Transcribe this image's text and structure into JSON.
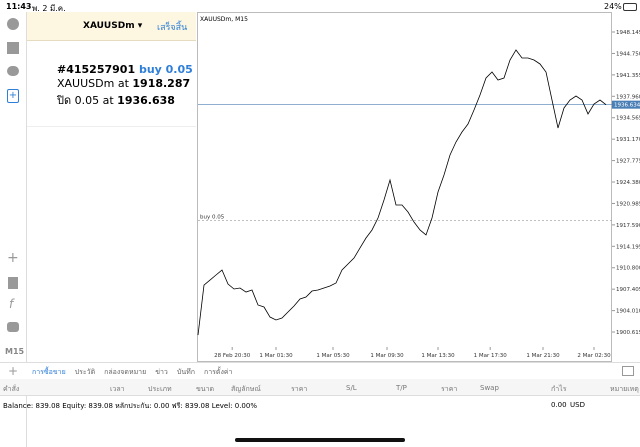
{
  "status_bar": {
    "time": "11:43",
    "date": "พ. 2 มี.ค.",
    "battery": "24%"
  },
  "panel": {
    "symbol": "XAUUSDm ▾",
    "done": "เสร็จสิ้น",
    "order": "#415257901",
    "action": "buy 0.05",
    "open_text": "XAUUSDm at",
    "open_price": "1918.287",
    "close_text": "ปิด 0.05 at",
    "close_price": "1936.638"
  },
  "sidebar": {
    "timeframe": "M15"
  },
  "tabs": [
    "การซื้อขาย",
    "ประวัติ",
    "กล่องจดหมาย",
    "ข่าว",
    "บันทึก",
    "การตั้งค่า"
  ],
  "columns": [
    "คำสั่ง",
    "เวลา",
    "ประเภท",
    "ขนาด",
    "สัญลักษณ์",
    "ราคา",
    "S/L",
    "T/P",
    "ราคา",
    "Swap",
    "กำไร",
    "หมายเหตุ"
  ],
  "balance": {
    "text": "Balance: 839.08 Equity: 839.08 หลักประกัน: 0.00 ฟรี: 839.08 Level: 0.00%",
    "profit": "0.00",
    "currency": "USD"
  },
  "chart_data": {
    "type": "line",
    "title": "XAUUSDm, M15",
    "color": "#000000",
    "values": [
      1900.14,
      1908.06,
      1908.85,
      1909.65,
      1910.44,
      1908.22,
      1907.43,
      1907.59,
      1906.95,
      1907.27,
      1904.9,
      1904.58,
      1902.99,
      1902.52,
      1902.83,
      1903.79,
      1904.74,
      1905.85,
      1906.16,
      1907.11,
      1907.27,
      1907.59,
      1907.91,
      1908.38,
      1910.44,
      1911.39,
      1912.34,
      1913.93,
      1915.51,
      1916.78,
      1918.68,
      1921.53,
      1924.7,
      1920.74,
      1920.74,
      1919.63,
      1918.04,
      1916.78,
      1915.99,
      1918.68,
      1922.8,
      1925.49,
      1928.66,
      1930.72,
      1932.3,
      1933.57,
      1935.79,
      1938.17,
      1940.86,
      1941.81,
      1940.54,
      1940.86,
      1943.71,
      1945.3,
      1944.03,
      1944.03,
      1943.71,
      1943.08,
      1941.81,
      1937.37,
      1932.94,
      1936.11,
      1937.37,
      1938.01,
      1937.37,
      1935.16,
      1936.74,
      1937.37,
      1936.63
    ],
    "xlim": [
      0,
      69
    ],
    "xticks": [
      {
        "value": 5.7,
        "label": "28 Feb 20:30"
      },
      {
        "value": 13,
        "label": "1 Mar 01:30"
      },
      {
        "value": 22.5,
        "label": "1 Mar 05:30"
      },
      {
        "value": 31.5,
        "label": "1 Mar 09:30"
      },
      {
        "value": 40,
        "label": "1 Mar 13:30"
      },
      {
        "value": 48.7,
        "label": "1 Mar 17:30"
      },
      {
        "value": 57.5,
        "label": "1 Mar 21:30"
      },
      {
        "value": 66,
        "label": "2 Mar 02:30"
      }
    ],
    "ylim": [
      1898.56,
      1950.84
    ],
    "yticks": [
      1948.145,
      {
        "value": 1944.75,
        "label": "1944.750"
      },
      1941.355,
      {
        "value": 1937.96,
        "label": "1937.960"
      },
      1934.565,
      {
        "value": 1931.17,
        "label": "1931.170"
      },
      1927.775,
      {
        "value": 1924.38,
        "label": "1924.380"
      },
      1920.985,
      {
        "value": 1917.59,
        "label": "1917.590"
      },
      1914.195,
      {
        "value": 1910.8,
        "label": "1910.800"
      },
      1907.405,
      {
        "value": 1904.01,
        "label": "1904.010"
      },
      1900.615
    ],
    "current_price": 1936.634,
    "current_color": "#4a7fb5",
    "order_line": {
      "label": "buy 0.05",
      "value": 1918.287
    }
  }
}
